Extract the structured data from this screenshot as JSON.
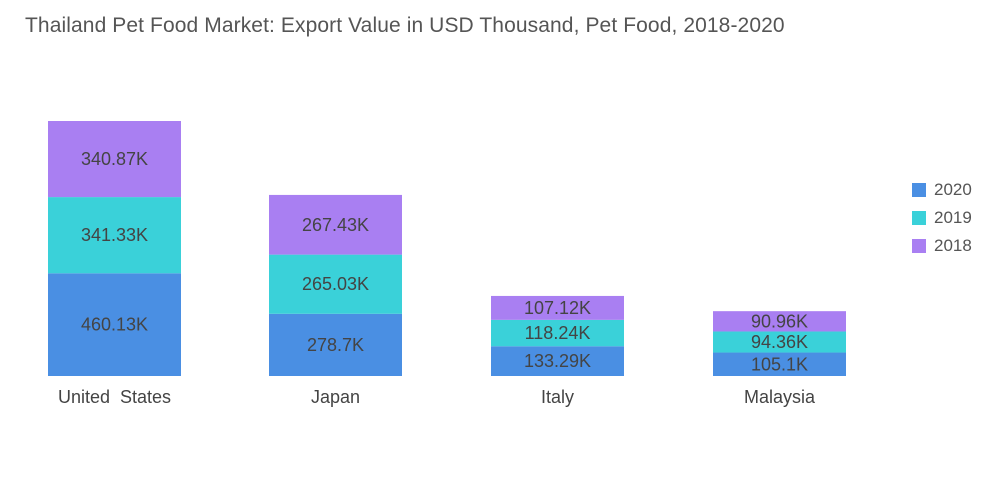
{
  "chart_data": {
    "type": "bar",
    "stacked": true,
    "title": "Thailand Pet  Food Market: Export Value in USD Thousand, Pet Food,  2018-2020",
    "xlabel": "",
    "ylabel": "",
    "ylim": [
      0,
      1142.33
    ],
    "grid": false,
    "legend_position": "right",
    "categories": [
      "United  States",
      "Japan",
      "Italy",
      "Malaysia"
    ],
    "series": [
      {
        "name": "2020",
        "color": "#4a8fe3",
        "values": [
          460.13,
          278.7,
          133.29,
          105.1
        ],
        "labels": [
          "460.13K",
          "278.7K",
          "133.29K",
          "105.1K"
        ]
      },
      {
        "name": "2019",
        "color": "#3ad1d9",
        "values": [
          341.33,
          265.03,
          118.24,
          94.36
        ],
        "labels": [
          "341.33K",
          "265.03K",
          "118.24K",
          "94.36K"
        ]
      },
      {
        "name": "2018",
        "color": "#a97ff2",
        "values": [
          340.87,
          267.43,
          107.12,
          90.96
        ],
        "labels": [
          "340.87K",
          "267.43K",
          "107.12K",
          "90.96K"
        ]
      }
    ]
  }
}
